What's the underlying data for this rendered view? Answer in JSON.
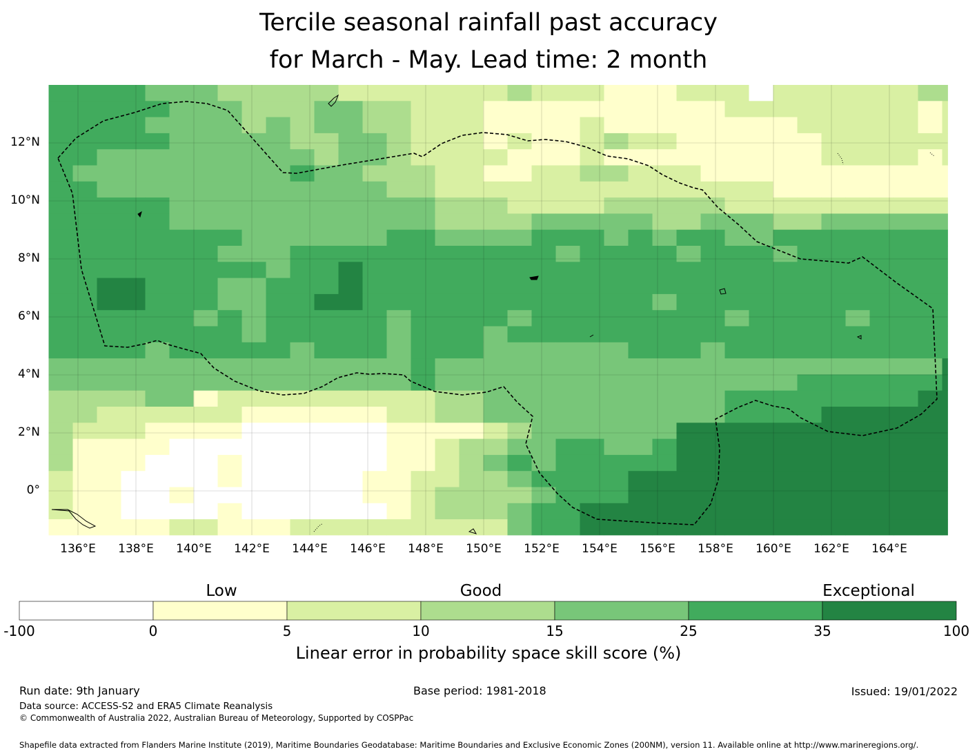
{
  "title": {
    "line1": "Tercile seasonal rainfall past accuracy",
    "line2": "for March - May. Lead time: 2 month"
  },
  "map": {
    "x_ticks": [
      "136°E",
      "138°E",
      "140°E",
      "142°E",
      "144°E",
      "146°E",
      "148°E",
      "150°E",
      "152°E",
      "154°E",
      "156°E",
      "158°E",
      "160°E",
      "162°E",
      "164°E"
    ],
    "y_ticks": [
      "12°N",
      "10°N",
      "8°N",
      "6°N",
      "4°N",
      "2°N",
      "0°"
    ],
    "x_range_deg": [
      135.0,
      166.0
    ],
    "y_range_deg": [
      -1.5,
      14.0
    ],
    "boundary_line": "dashed",
    "pattern_summary": "Higher skill (dark green, 25-100%) across the central and southeastern region; low skill (white/light yellow, -100-5%) in the southwest and northeast corners"
  },
  "colorbar": {
    "band_labels": {
      "low": "Low",
      "good": "Good",
      "exceptional": "Exceptional"
    },
    "tick_labels": [
      "-100",
      "0",
      "5",
      "10",
      "15",
      "25",
      "35",
      "100"
    ],
    "colors": [
      "#ffffff",
      "#ffffcc",
      "#d9f0a3",
      "#addd8e",
      "#78c679",
      "#41ab5d",
      "#238443"
    ],
    "label": "Linear error in probability space skill score (%)"
  },
  "footer": {
    "run_date": "Run date: 9th January",
    "base_period": "Base period: 1981-2018",
    "issued": "Issued: 19/01/2022",
    "data_source": "Data source: ACCESS-S2 and ERA5 Climate Reanalysis",
    "copyright": "© Commonwealth of Australia 2022, Australian Bureau of Meteorology, Supported by COSPPac",
    "shapefile": "Shapefile data extracted from Flanders Marine Institute (2019), Maritime Boundaries Geodatabase: Maritime Boundaries and Exclusive Economic Zones (200NM), version 11. Available online at http://www.marineregions.org/."
  }
}
